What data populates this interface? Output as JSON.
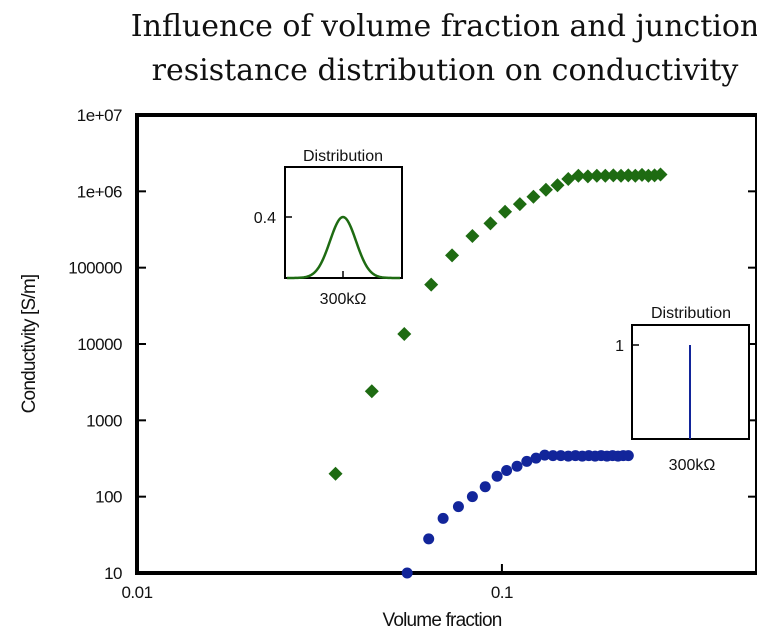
{
  "chart_data": {
    "type": "scatter",
    "title": [
      "Influence of volume fraction and junction",
      "resistance distribution on conductivity"
    ],
    "xlabel": "Volume fraction",
    "ylabel": "Conductivity [S/m]",
    "xscale": "log",
    "yscale": "log",
    "xlim": [
      0.01,
      0.5
    ],
    "ylim": [
      10,
      10000000
    ],
    "x_ticks": [
      {
        "value": 0.01,
        "label": "0.01"
      },
      {
        "value": 0.1,
        "label": "0.1"
      }
    ],
    "y_ticks": [
      {
        "value": 10,
        "label": "10"
      },
      {
        "value": 100,
        "label": "100"
      },
      {
        "value": 1000,
        "label": "1000"
      },
      {
        "value": 10000,
        "label": "10000"
      },
      {
        "value": 100000,
        "label": "100000"
      },
      {
        "value": 1000000,
        "label": "1e+06"
      },
      {
        "value": 10000000,
        "label": "1e+07"
      }
    ],
    "series": [
      {
        "color": "#1e6b12",
        "marker": "diamond",
        "x": [
          0.035,
          0.044,
          0.054,
          0.064,
          0.073,
          0.083,
          0.093,
          0.102,
          0.112,
          0.122,
          0.132,
          0.142,
          0.152,
          0.162,
          0.172,
          0.182,
          0.192,
          0.202,
          0.212,
          0.222,
          0.232,
          0.242,
          0.252,
          0.262,
          0.272
        ],
        "y": [
          200,
          2400,
          13500,
          60000,
          145000,
          260000,
          380000,
          540000,
          680000,
          850000,
          1050000,
          1200000,
          1450000,
          1600000,
          1570000,
          1600000,
          1600000,
          1620000,
          1600000,
          1620000,
          1600000,
          1640000,
          1600000,
          1620000,
          1660000
        ]
      },
      {
        "color": "#12259a",
        "marker": "circle",
        "x": [
          0.055,
          0.063,
          0.069,
          0.076,
          0.083,
          0.09,
          0.097,
          0.103,
          0.11,
          0.117,
          0.124,
          0.131,
          0.138,
          0.145,
          0.152,
          0.159,
          0.166,
          0.173,
          0.18,
          0.187,
          0.194,
          0.201,
          0.208,
          0.215,
          0.222
        ],
        "y": [
          10,
          28,
          52,
          74,
          100,
          135,
          185,
          220,
          250,
          290,
          320,
          350,
          345,
          345,
          340,
          345,
          340,
          345,
          340,
          345,
          340,
          345,
          340,
          345,
          345
        ]
      }
    ],
    "insets": [
      {
        "title": "Distribution",
        "ytick": "0.4",
        "xtick": "300kΩ",
        "curve": "gaussian",
        "color": "#1e6b12"
      },
      {
        "title": "Distribution",
        "ytick": "1",
        "xtick": "300kΩ",
        "curve": "delta",
        "color": "#12259a"
      }
    ]
  }
}
